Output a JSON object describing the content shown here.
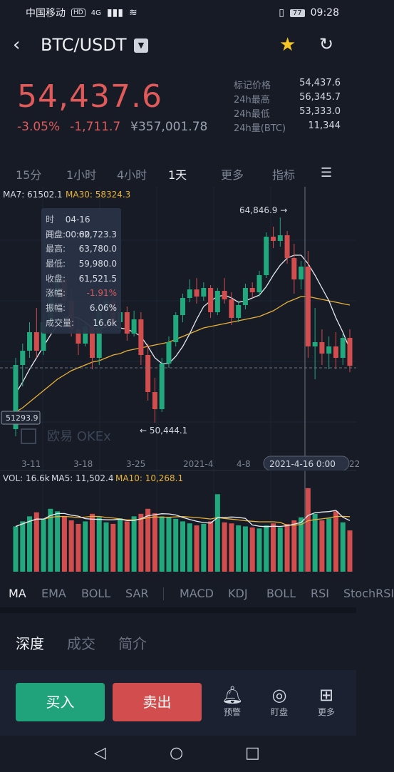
{
  "status": {
    "carrier": "中国移动",
    "hd": "HD",
    "net": "4G",
    "battery": "77",
    "time": "09:28"
  },
  "header": {
    "pair": "BTC/USDT",
    "back_icon": "back-icon",
    "star_icon": "star-icon",
    "refresh_icon": "refresh-icon"
  },
  "quote": {
    "price": "54,437.6",
    "change_pct": "-3.05%",
    "change_abs": "-1,711.7",
    "cny": "¥357,001.78",
    "stats": [
      {
        "k": "标记价格",
        "v": "54,437.6"
      },
      {
        "k": "24h最高",
        "v": "56,345.7"
      },
      {
        "k": "24h最低",
        "v": "53,333.0"
      },
      {
        "k": "24h量(BTC)",
        "v": "11,344"
      }
    ]
  },
  "timeframes": [
    "15分",
    "1小时",
    "4小时",
    "1天",
    "更多",
    "指标"
  ],
  "active_timeframe": "1天",
  "main_chart": {
    "ma7_label": "MA7: 61502.1",
    "ma30_label": "MA30: 58324.3",
    "high_label": "64,846.9 →",
    "low_label": "← 50,444.1",
    "left_price": "51293.9",
    "watermark": "欧易 OKEx",
    "x_labels": [
      "3-11",
      "3-18",
      "3-25",
      "2021-4",
      "4-8",
      "2021-4-16  0:00",
      "22"
    ],
    "tooltip": [
      {
        "k": "时间:",
        "v": "04-16 00:00"
      },
      {
        "k": "开盘:",
        "v": "62,723.3"
      },
      {
        "k": "最高:",
        "v": "63,780.0"
      },
      {
        "k": "最低:",
        "v": "59,980.0"
      },
      {
        "k": "收盘:",
        "v": "61,521.5"
      },
      {
        "k": "涨幅:",
        "v": "-1.91%"
      },
      {
        "k": "振幅:",
        "v": "6.06%"
      },
      {
        "k": "成交量:",
        "v": "16.6k"
      }
    ]
  },
  "volume_chart": {
    "vol_label": "VOL: 16.6k",
    "ma5_label": "MA5: 11,502.4",
    "ma10_label": "MA10: 10,268.1"
  },
  "chart_data": {
    "type": "candlestick",
    "up_color": "#22a87d",
    "down_color": "#d24e4e",
    "candles": [
      [
        50000,
        55000,
        49500,
        54500
      ],
      [
        54500,
        56000,
        53000,
        55500
      ],
      [
        55500,
        57500,
        55000,
        56800
      ],
      [
        56800,
        58500,
        55000,
        55500
      ],
      [
        55500,
        58000,
        55200,
        57500
      ],
      [
        57500,
        60000,
        57000,
        59500
      ],
      [
        59500,
        61200,
        59000,
        60500
      ],
      [
        60500,
        60800,
        58500,
        59000
      ],
      [
        59000,
        59800,
        56500,
        57000
      ],
      [
        57000,
        58000,
        55200,
        56000
      ],
      [
        56000,
        57500,
        55800,
        57200
      ],
      [
        57200,
        57800,
        54200,
        55000
      ],
      [
        55000,
        59500,
        54500,
        58600
      ],
      [
        58600,
        59800,
        57800,
        59000
      ],
      [
        59000,
        59500,
        57000,
        57500
      ],
      [
        57500,
        58500,
        57000,
        58200
      ],
      [
        58200,
        58600,
        56200,
        56700
      ],
      [
        56700,
        58300,
        56500,
        57700
      ],
      [
        57700,
        58200,
        54500,
        55200
      ],
      [
        55200,
        56000,
        52000,
        52600
      ],
      [
        52600,
        53600,
        50444,
        51400
      ],
      [
        51400,
        55000,
        51200,
        54600
      ],
      [
        54600,
        56500,
        54300,
        56100
      ],
      [
        56100,
        58200,
        55800,
        58000
      ],
      [
        58000,
        59500,
        57500,
        59200
      ],
      [
        59200,
        60500,
        58900,
        59800
      ],
      [
        59800,
        60600,
        58800,
        59300
      ],
      [
        59300,
        60300,
        59000,
        59900
      ],
      [
        59900,
        60100,
        57800,
        58200
      ],
      [
        58200,
        59900,
        58000,
        59700
      ],
      [
        59700,
        60600,
        58800,
        59100
      ],
      [
        59100,
        59600,
        57300,
        57800
      ],
      [
        57800,
        59000,
        57500,
        58700
      ],
      [
        58700,
        60200,
        58400,
        59900
      ],
      [
        59900,
        60300,
        59200,
        59600
      ],
      [
        59600,
        61100,
        59300,
        60800
      ],
      [
        60800,
        63800,
        60600,
        63500
      ],
      [
        63500,
        64200,
        62700,
        63200
      ],
      [
        63200,
        64847,
        62800,
        63600
      ],
      [
        63600,
        63900,
        61600,
        62000
      ],
      [
        62000,
        63000,
        59500,
        60500
      ],
      [
        60500,
        61800,
        59800,
        61400
      ],
      [
        61400,
        62500,
        55000,
        55800
      ],
      [
        55800,
        58500,
        53500,
        56100
      ],
      [
        56100,
        57000,
        54500,
        55300
      ],
      [
        55300,
        56500,
        54200,
        55800
      ],
      [
        55800,
        56800,
        54200,
        55000
      ],
      [
        55000,
        56700,
        54500,
        56400
      ],
      [
        56400,
        57000,
        54000,
        54437
      ]
    ],
    "volume": [
      9,
      10,
      11,
      11.8,
      10.5,
      12.5,
      12,
      11,
      10.2,
      9.5,
      10,
      11.5,
      10.8,
      9.8,
      9.5,
      10.6,
      10,
      11,
      11.5,
      12.5,
      11.6,
      11,
      10.8,
      10.5,
      10,
      9.6,
      9.2,
      9.5,
      10,
      15.4,
      9.8,
      9.6,
      9.2,
      9,
      8.8,
      8.6,
      9.2,
      9.6,
      8.8,
      9.5,
      10.2,
      10.8,
      16.6,
      11.5,
      10.2,
      10.6,
      12,
      9.8,
      8.2
    ],
    "ma7": [
      52500,
      53300,
      54200,
      55000,
      55800,
      56600,
      57300,
      57800,
      57900,
      57800,
      57500,
      57100,
      57000,
      57200,
      57300,
      57100,
      57000,
      56800,
      56500,
      55800,
      55000,
      54600,
      54600,
      55100,
      55800,
      56700,
      57700,
      58600,
      59000,
      59300,
      59400,
      59200,
      58900,
      59000,
      59200,
      59400,
      60000,
      60800,
      61500,
      62000,
      62200,
      62200,
      61600,
      60800,
      59900,
      59000,
      57800,
      56800,
      55600
    ],
    "ma30": [
      51200,
      51500,
      51900,
      52300,
      52700,
      53100,
      53500,
      53800,
      54100,
      54300,
      54500,
      54700,
      54800,
      55000,
      55200,
      55300,
      55500,
      55600,
      55700,
      55800,
      55900,
      56000,
      56100,
      56300,
      56500,
      56700,
      56900,
      57100,
      57200,
      57300,
      57400,
      57500,
      57600,
      57700,
      57800,
      57900,
      58100,
      58300,
      58600,
      58900,
      59100,
      59300,
      59300,
      59200,
      59100,
      59000,
      58900,
      58800,
      58700
    ],
    "y_range": [
      49000,
      66000
    ],
    "x_labels": [
      "3-11",
      "3-18",
      "3-25",
      "2021-4",
      "4-8",
      "2021-4-16  0:00",
      "22"
    ]
  },
  "indicators": [
    "MA",
    "EMA",
    "BOLL",
    "SAR",
    "MACD",
    "KDJ",
    "BOLL",
    "RSI",
    "StochRSI"
  ],
  "active_indicator": "MA",
  "subtabs": [
    "深度",
    "成交",
    "简介"
  ],
  "active_subtab": "深度",
  "bottom": {
    "buy": "买入",
    "sell": "卖出",
    "items": [
      {
        "label": "预警",
        "icon": "bell-icon"
      },
      {
        "label": "盯盘",
        "icon": "pulse-icon"
      },
      {
        "label": "更多",
        "icon": "grid-icon"
      }
    ]
  }
}
